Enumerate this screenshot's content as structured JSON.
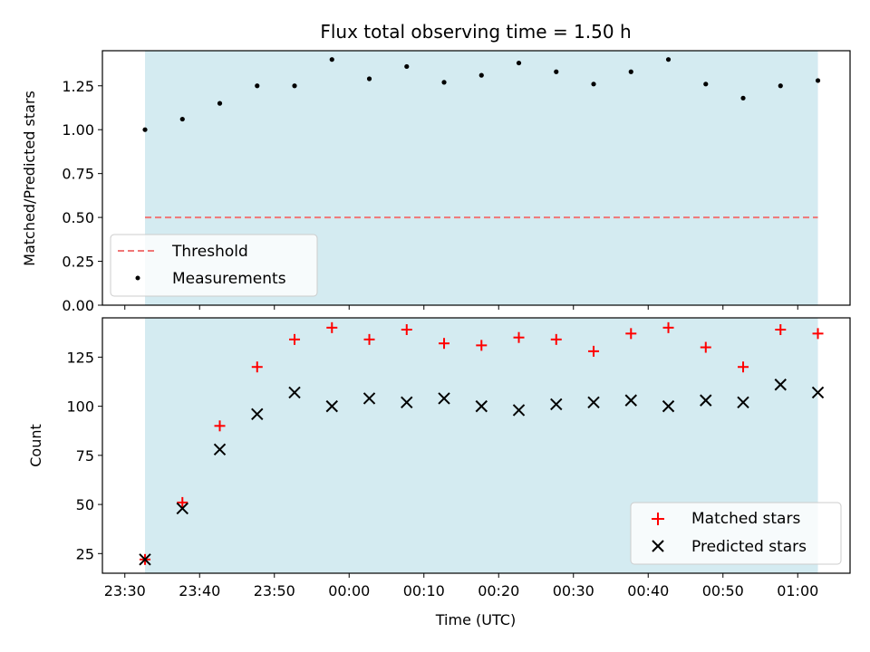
{
  "chart_data": [
    {
      "type": "scatter",
      "title": "Flux total observing time = 1.50 h",
      "xlabel": "",
      "ylabel": "Matched/Predicted stars",
      "xlim": [
        -3,
        97
      ],
      "ylim": [
        0,
        1.45
      ],
      "yticks": [
        0.0,
        0.25,
        0.5,
        0.75,
        1.0,
        1.25
      ],
      "ytick_labels": [
        "0.00",
        "0.25",
        "0.50",
        "0.75",
        "1.00",
        "1.25"
      ],
      "shaded_span": [
        2.7,
        92.7
      ],
      "shaded_color": "#d4ebf1",
      "threshold": {
        "name": "Threshold",
        "value": 0.5,
        "color": "#f07676"
      },
      "series": [
        {
          "name": "Measurements",
          "color": "#000000",
          "marker": "dot",
          "x": [
            2.7,
            7.7,
            12.7,
            17.7,
            22.7,
            27.7,
            32.7,
            37.7,
            42.7,
            47.7,
            52.7,
            57.7,
            62.7,
            67.7,
            72.7,
            77.7,
            82.7,
            87.7,
            92.7
          ],
          "y": [
            1.0,
            1.06,
            1.15,
            1.25,
            1.25,
            1.4,
            1.29,
            1.36,
            1.27,
            1.31,
            1.38,
            1.33,
            1.26,
            1.33,
            1.4,
            1.26,
            1.18,
            1.25,
            1.28
          ]
        }
      ],
      "legend": {
        "position": "lower-left",
        "entries": [
          "Threshold",
          "Measurements"
        ]
      }
    },
    {
      "type": "scatter",
      "title": "",
      "xlabel": "Time (UTC)",
      "ylabel": "Count",
      "xlim": [
        -3,
        97
      ],
      "ylim": [
        15,
        145
      ],
      "yticks": [
        25,
        50,
        75,
        100,
        125
      ],
      "ytick_labels": [
        "25",
        "50",
        "75",
        "100",
        "125"
      ],
      "xticks": [
        0,
        10,
        20,
        30,
        40,
        50,
        60,
        70,
        80,
        90
      ],
      "xtick_labels": [
        "23:30",
        "23:40",
        "23:50",
        "00:00",
        "00:10",
        "00:20",
        "00:30",
        "00:40",
        "00:50",
        "01:00"
      ],
      "shaded_span": [
        2.7,
        92.7
      ],
      "shaded_color": "#d4ebf1",
      "series": [
        {
          "name": "Matched stars",
          "color": "#ff0000",
          "marker": "plus",
          "x": [
            2.7,
            7.7,
            12.7,
            17.7,
            22.7,
            27.7,
            32.7,
            37.7,
            42.7,
            47.7,
            52.7,
            57.7,
            62.7,
            67.7,
            72.7,
            77.7,
            82.7,
            87.7,
            92.7
          ],
          "y": [
            22,
            51,
            90,
            120,
            134,
            140,
            134,
            139,
            132,
            131,
            135,
            134,
            128,
            137,
            140,
            130,
            120,
            139,
            137
          ]
        },
        {
          "name": "Predicted stars",
          "color": "#000000",
          "marker": "x",
          "x": [
            2.7,
            7.7,
            12.7,
            17.7,
            22.7,
            27.7,
            32.7,
            37.7,
            42.7,
            47.7,
            52.7,
            57.7,
            62.7,
            67.7,
            72.7,
            77.7,
            82.7,
            87.7,
            92.7
          ],
          "y": [
            22,
            48,
            78,
            96,
            107,
            100,
            104,
            102,
            104,
            100,
            98,
            101,
            102,
            103,
            100,
            103,
            102,
            111,
            107
          ]
        }
      ],
      "legend": {
        "position": "lower-right",
        "entries": [
          "Matched stars",
          "Predicted stars"
        ]
      }
    }
  ]
}
